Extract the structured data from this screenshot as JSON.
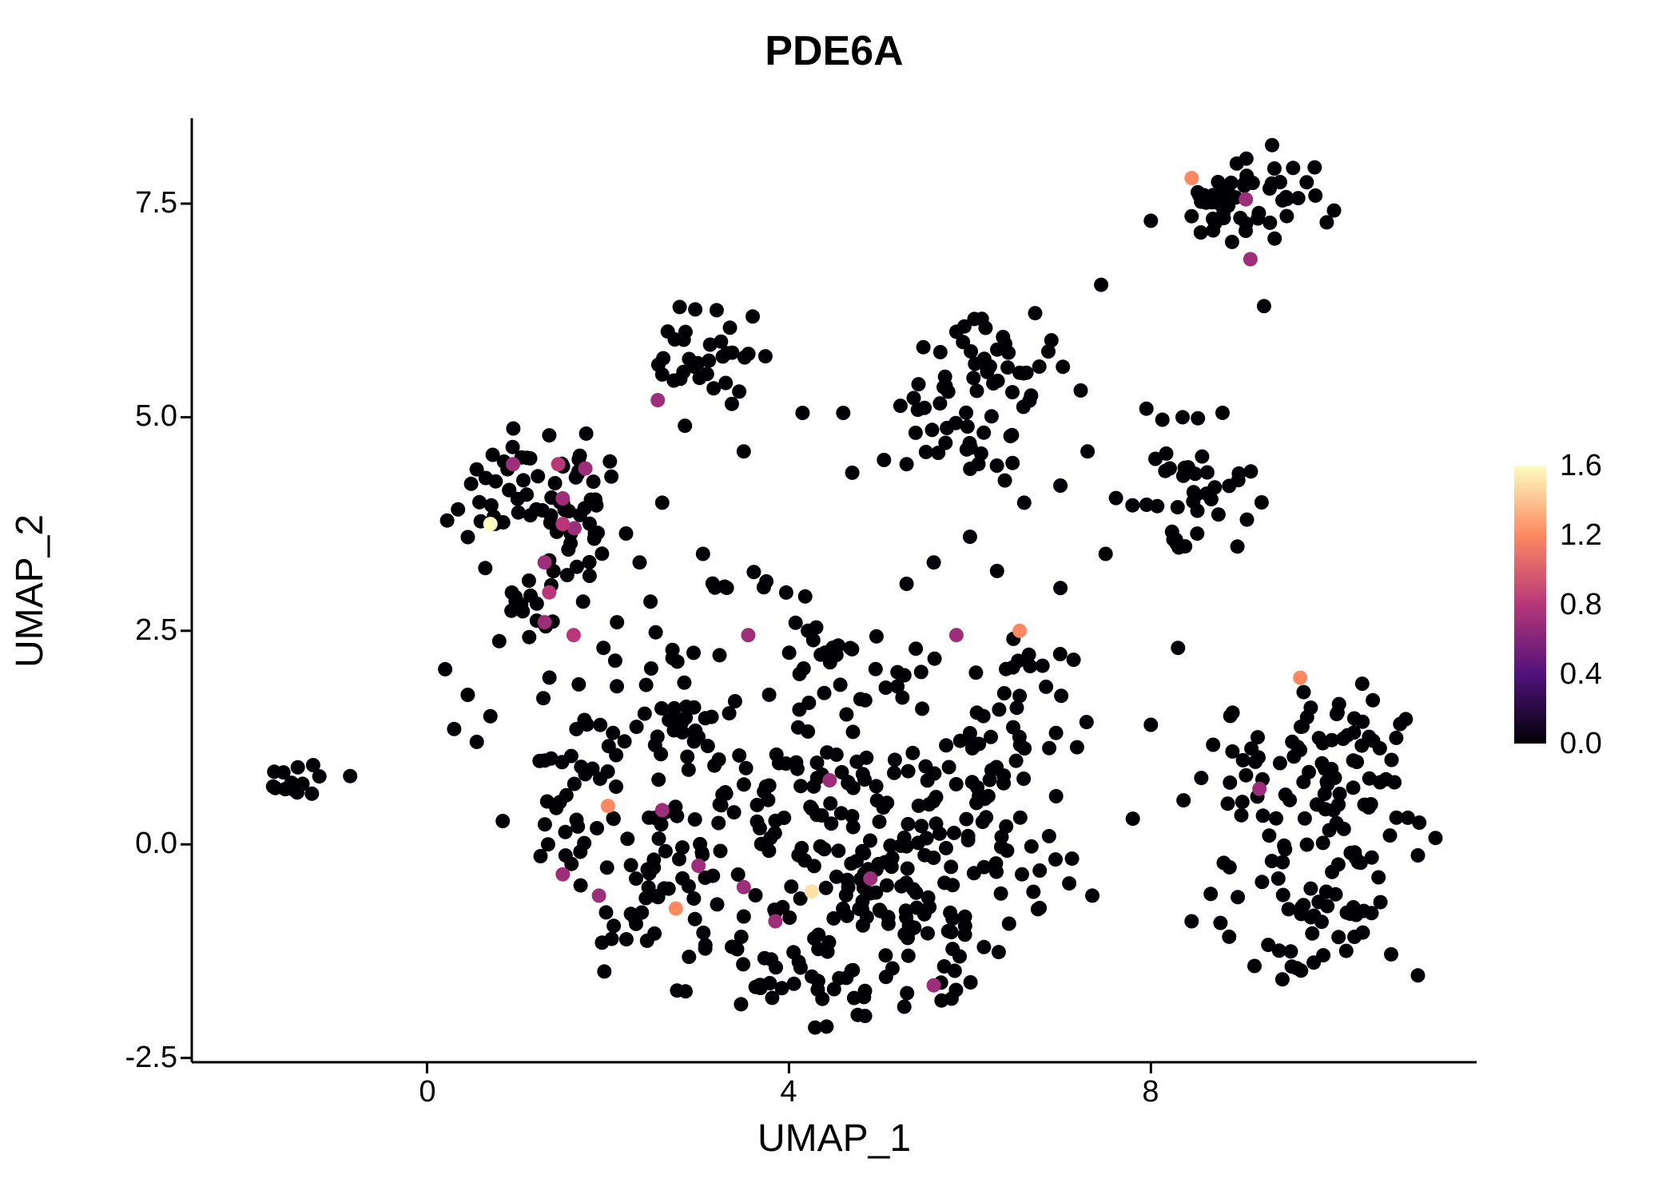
{
  "title": "PDE6A",
  "chart_data": {
    "type": "scatter",
    "title": "PDE6A",
    "xlabel": "UMAP_1",
    "ylabel": "UMAP_2",
    "xlim": [
      -2.6,
      11.6
    ],
    "ylim": [
      -2.55,
      8.5
    ],
    "x_ticks": [
      0,
      4,
      8
    ],
    "x_tick_labels": [
      "0",
      "4",
      "8"
    ],
    "y_ticks": [
      -2.5,
      0.0,
      2.5,
      5.0,
      7.5
    ],
    "y_tick_labels": [
      "-2.5",
      "0.0",
      "2.5",
      "5.0",
      "7.5"
    ],
    "grid": false,
    "background": "#ffffff",
    "point_radius_px": 9,
    "seed": 42,
    "legend": {
      "position": "right",
      "vmin": 0.0,
      "vmax": 1.6,
      "tick_labels": [
        "1.6",
        "1.2",
        "0.8",
        "0.4",
        "0.0"
      ],
      "colormap": "magma",
      "stops": [
        [
          0,
          "#000004"
        ],
        [
          0.25,
          "#51127c"
        ],
        [
          0.5,
          "#b73779"
        ],
        [
          0.75,
          "#fc8961"
        ],
        [
          1,
          "#fcfdbf"
        ]
      ]
    },
    "expressing_points": [
      [
        8.45,
        7.8,
        1.2
      ],
      [
        9.05,
        7.55,
        0.7
      ],
      [
        9.1,
        6.85,
        0.7
      ],
      [
        2.55,
        5.2,
        0.7
      ],
      [
        0.7,
        3.75,
        1.6
      ],
      [
        0.95,
        4.45,
        0.7
      ],
      [
        1.45,
        4.45,
        0.8
      ],
      [
        1.75,
        4.4,
        0.7
      ],
      [
        1.5,
        4.05,
        0.7
      ],
      [
        1.5,
        3.75,
        0.8
      ],
      [
        1.63,
        3.7,
        0.7
      ],
      [
        1.3,
        3.3,
        0.7
      ],
      [
        1.35,
        2.95,
        0.8
      ],
      [
        1.3,
        2.6,
        0.7
      ],
      [
        1.62,
        2.45,
        0.8
      ],
      [
        2.0,
        0.45,
        1.2
      ],
      [
        2.6,
        0.4,
        0.7
      ],
      [
        1.5,
        -0.35,
        0.7
      ],
      [
        1.9,
        -0.6,
        0.7
      ],
      [
        2.75,
        -0.75,
        1.2
      ],
      [
        3.0,
        -0.25,
        0.7
      ],
      [
        3.5,
        -0.5,
        0.7
      ],
      [
        4.25,
        -0.55,
        1.5
      ],
      [
        3.85,
        -0.9,
        0.7
      ],
      [
        4.9,
        -0.4,
        0.7
      ],
      [
        4.45,
        0.75,
        0.7
      ],
      [
        3.55,
        2.45,
        0.7
      ],
      [
        5.85,
        2.45,
        0.7
      ],
      [
        6.55,
        2.5,
        1.2
      ],
      [
        5.6,
        -1.65,
        0.7
      ],
      [
        9.65,
        1.95,
        1.2
      ],
      [
        9.2,
        0.65,
        0.7
      ]
    ],
    "background_clusters": [
      [
        9.15,
        7.65,
        0.38,
        0.26,
        40
      ],
      [
        8.65,
        7.45,
        0.22,
        0.2,
        12
      ],
      [
        3.05,
        5.75,
        0.3,
        0.27,
        30
      ],
      [
        1.05,
        4.15,
        0.4,
        0.33,
        40
      ],
      [
        1.55,
        3.6,
        0.4,
        0.33,
        28
      ],
      [
        1.2,
        2.85,
        0.3,
        0.28,
        14
      ],
      [
        1.9,
        4.45,
        0.22,
        0.18,
        8
      ],
      [
        -1.5,
        0.75,
        0.17,
        0.1,
        14
      ],
      [
        2.0,
        1.3,
        0.42,
        0.33,
        30
      ],
      [
        1.55,
        0.3,
        0.33,
        0.38,
        22
      ],
      [
        2.5,
        -0.35,
        0.42,
        0.42,
        28
      ],
      [
        3.3,
        0.3,
        0.48,
        0.48,
        35
      ],
      [
        4.2,
        0.8,
        0.48,
        0.43,
        40
      ],
      [
        4.5,
        -0.55,
        0.48,
        0.43,
        40
      ],
      [
        5.3,
        0.3,
        0.48,
        0.48,
        45
      ],
      [
        5.5,
        -1.0,
        0.48,
        0.38,
        38
      ],
      [
        6.3,
        0.8,
        0.43,
        0.38,
        30
      ],
      [
        6.5,
        -0.2,
        0.38,
        0.38,
        22
      ],
      [
        4.0,
        -1.5,
        0.43,
        0.28,
        20
      ],
      [
        5.0,
        -1.7,
        0.38,
        0.24,
        16
      ],
      [
        3.2,
        -1.2,
        0.38,
        0.28,
        16
      ],
      [
        6.6,
        1.9,
        0.38,
        0.33,
        20
      ],
      [
        5.0,
        2.0,
        0.38,
        0.28,
        16
      ],
      [
        4.3,
        2.3,
        0.28,
        0.24,
        12
      ],
      [
        2.7,
        2.1,
        0.28,
        0.28,
        10
      ],
      [
        3.6,
        2.9,
        0.33,
        0.28,
        10
      ],
      [
        2.2,
        -1.0,
        0.28,
        0.24,
        10
      ],
      [
        3.0,
        1.4,
        0.33,
        0.28,
        14
      ],
      [
        6.35,
        5.6,
        0.38,
        0.33,
        35
      ],
      [
        6.05,
        4.7,
        0.38,
        0.28,
        22
      ],
      [
        5.6,
        5.3,
        0.24,
        0.24,
        8
      ],
      [
        8.35,
        4.35,
        0.38,
        0.33,
        28
      ],
      [
        8.65,
        3.6,
        0.28,
        0.24,
        12
      ],
      [
        9.35,
        0.85,
        0.43,
        0.38,
        32
      ],
      [
        10.05,
        1.35,
        0.43,
        0.33,
        30
      ],
      [
        10.35,
        0.3,
        0.43,
        0.38,
        32
      ],
      [
        9.65,
        -0.5,
        0.43,
        0.38,
        28
      ],
      [
        10.2,
        -1.0,
        0.38,
        0.28,
        20
      ],
      [
        9.05,
        -1.25,
        0.28,
        0.19,
        8
      ]
    ],
    "background_singles": [
      [
        7.45,
        6.55
      ],
      [
        9.25,
        6.3
      ],
      [
        8.0,
        7.3
      ],
      [
        7.95,
        5.1
      ],
      [
        8.35,
        5.0
      ],
      [
        4.15,
        5.05
      ],
      [
        4.6,
        5.05
      ],
      [
        5.3,
        4.45
      ],
      [
        4.7,
        4.35
      ],
      [
        5.05,
        4.5
      ],
      [
        7.3,
        4.6
      ],
      [
        7.5,
        3.4
      ],
      [
        7.0,
        3.0
      ],
      [
        6.6,
        4.0
      ],
      [
        7.0,
        4.2
      ],
      [
        5.6,
        3.3
      ],
      [
        6.0,
        3.6
      ],
      [
        5.3,
        3.05
      ],
      [
        6.3,
        3.2
      ],
      [
        2.6,
        4.0
      ],
      [
        2.35,
        3.3
      ],
      [
        3.05,
        3.4
      ],
      [
        2.8,
        5.45
      ],
      [
        3.45,
        5.3
      ],
      [
        2.6,
        5.5
      ],
      [
        2.85,
        4.9
      ],
      [
        3.5,
        4.6
      ],
      [
        6.9,
        5.9
      ],
      [
        5.85,
        6.0
      ],
      [
        6.05,
        6.15
      ],
      [
        0.2,
        2.05
      ],
      [
        0.45,
        1.75
      ],
      [
        0.3,
        1.35
      ],
      [
        0.55,
        1.2
      ],
      [
        0.7,
        1.5
      ],
      [
        -0.85,
        0.8
      ],
      [
        8.3,
        2.3
      ],
      [
        8.0,
        1.4
      ],
      [
        7.8,
        0.3
      ],
      [
        8.45,
        -0.9
      ],
      [
        2.1,
        2.6
      ],
      [
        1.95,
        2.3
      ]
    ]
  }
}
